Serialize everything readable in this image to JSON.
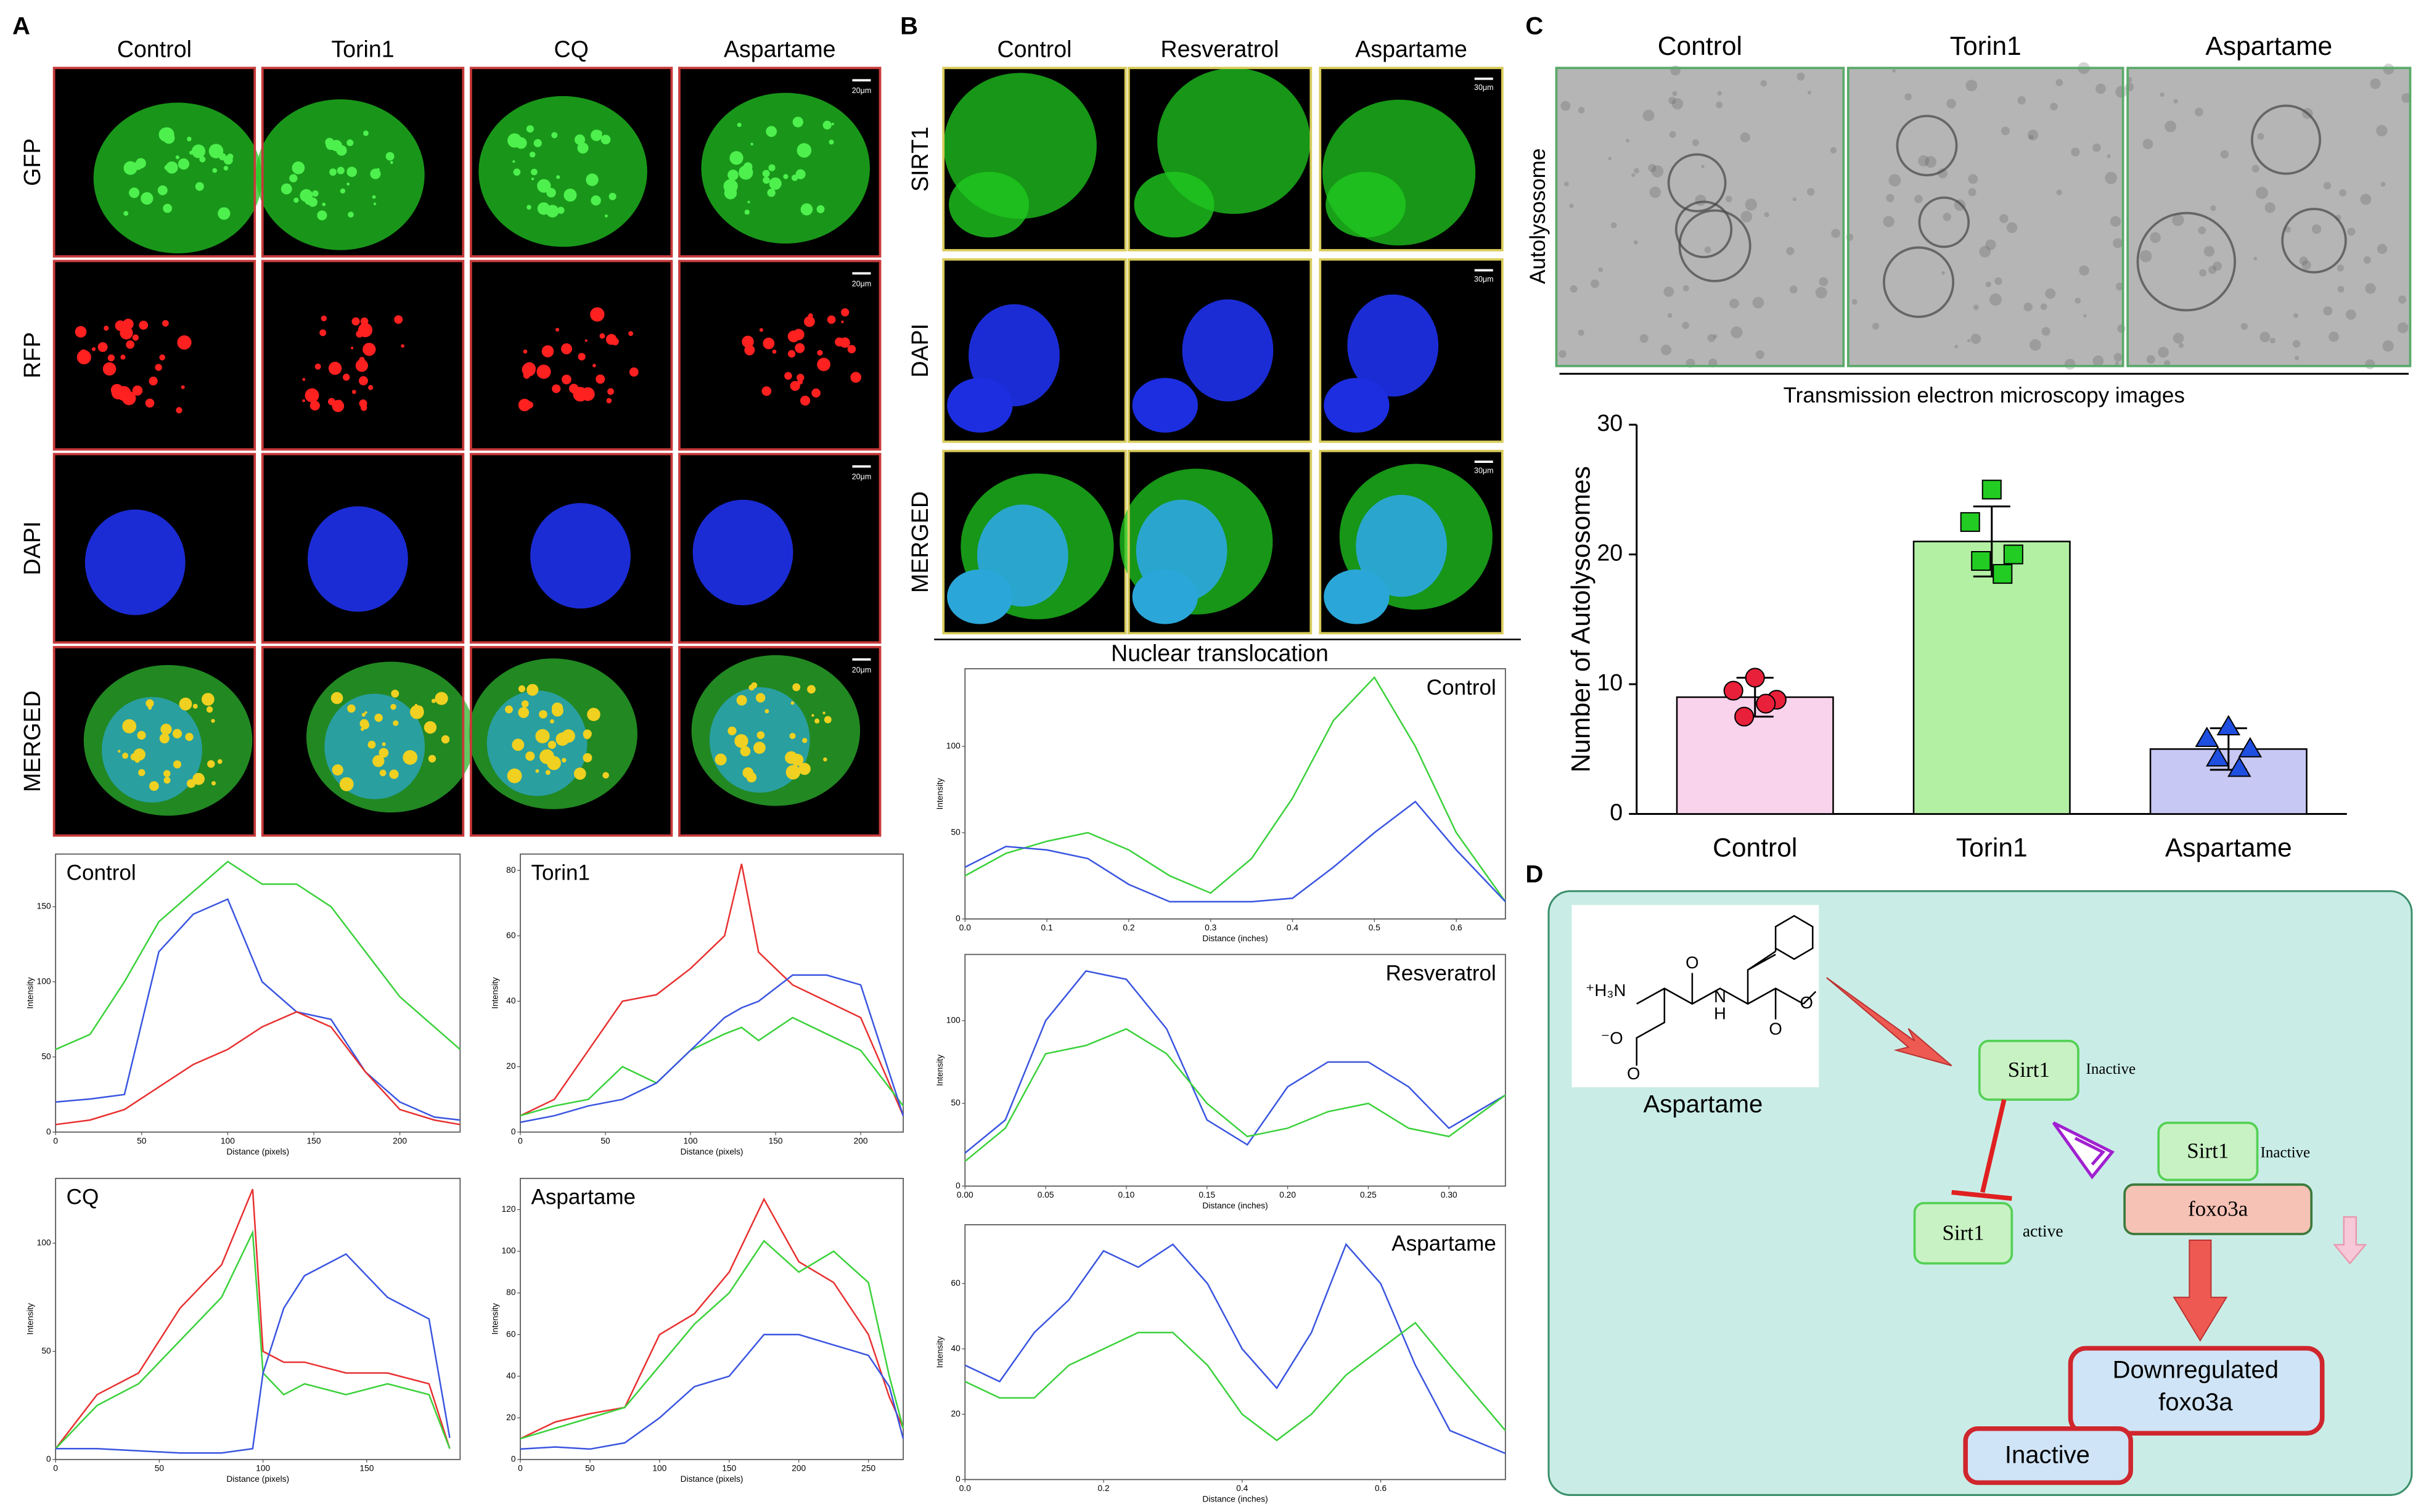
{
  "panel_a": {
    "label": "A",
    "columns": [
      "Control",
      "Torin1",
      "CQ",
      "Aspartame"
    ],
    "rows": [
      "GFP",
      "RFP",
      "DAPI",
      "MERGED"
    ],
    "scale_bar": "20μm"
  },
  "panel_b": {
    "label": "B",
    "columns": [
      "Control",
      "Resveratrol",
      "Aspartame"
    ],
    "rows": [
      "SIRT1",
      "DAPI",
      "MERGED"
    ],
    "scale_bar": "30μm",
    "subtitle": "Nuclear translocation"
  },
  "panel_c": {
    "label": "C",
    "columns": [
      "Control",
      "Torin1",
      "Aspartame"
    ],
    "row": "Autolysosome",
    "caption": "Transmission electron microscopy images"
  },
  "panel_d": {
    "label": "D",
    "molecule_name": "Aspartame",
    "atoms": [
      "⁺H₃N",
      "O",
      "N",
      "H",
      "O",
      "O",
      "⁻O",
      "O"
    ],
    "nodes": {
      "sirt1_top": "Sirt1",
      "sirt1_top_state": "Inactive",
      "sirt1_active": "Sirt1",
      "sirt1_active_state": "active",
      "sirt1_complex": "Sirt1",
      "sirt1_complex_state": "Inactive",
      "foxo3a": "foxo3a",
      "downregulated": [
        "Downregulated",
        "foxo3a"
      ],
      "inactive": "Inactive"
    }
  },
  "chart_data": [
    {
      "type": "line",
      "title": "Control",
      "xlabel": "Distance (pixels)",
      "ylabel": "Intensity",
      "x": [
        0,
        20,
        40,
        60,
        80,
        100,
        120,
        140,
        160,
        180,
        200,
        220,
        235
      ],
      "xlim": [
        0,
        235
      ],
      "ylim": [
        0,
        185
      ],
      "xticks": [
        0,
        50,
        100,
        150,
        200
      ],
      "yticks": [
        0,
        50,
        100,
        150
      ],
      "series": [
        {
          "color": "#3ad13a",
          "values": [
            55,
            65,
            100,
            140,
            160,
            180,
            165,
            165,
            150,
            120,
            90,
            70,
            55
          ]
        },
        {
          "color": "#3a55e0",
          "values": [
            20,
            22,
            25,
            120,
            145,
            155,
            100,
            80,
            75,
            40,
            20,
            10,
            8
          ]
        },
        {
          "color": "#e83030",
          "values": [
            5,
            8,
            15,
            30,
            45,
            55,
            70,
            80,
            70,
            40,
            15,
            8,
            5
          ]
        }
      ]
    },
    {
      "type": "line",
      "title": "Torin1",
      "xlabel": "Distance (pixels)",
      "ylabel": "Intensity",
      "x": [
        0,
        20,
        40,
        60,
        80,
        100,
        120,
        130,
        140,
        160,
        180,
        200,
        225
      ],
      "xlim": [
        0,
        225
      ],
      "ylim": [
        0,
        85
      ],
      "xticks": [
        0,
        50,
        100,
        150,
        200
      ],
      "yticks": [
        0,
        20,
        40,
        60,
        80
      ],
      "series": [
        {
          "color": "#e83030",
          "values": [
            5,
            10,
            25,
            40,
            42,
            50,
            60,
            82,
            55,
            45,
            40,
            35,
            5
          ]
        },
        {
          "color": "#3ad13a",
          "values": [
            5,
            8,
            10,
            20,
            15,
            25,
            30,
            32,
            28,
            35,
            30,
            25,
            8
          ]
        },
        {
          "color": "#3a55e0",
          "values": [
            3,
            5,
            8,
            10,
            15,
            25,
            35,
            38,
            40,
            48,
            48,
            45,
            5
          ]
        }
      ]
    },
    {
      "type": "line",
      "title": "CQ",
      "xlabel": "Distance (pixels)",
      "ylabel": "Intensity",
      "x": [
        0,
        20,
        40,
        60,
        80,
        95,
        100,
        110,
        120,
        140,
        160,
        180,
        190
      ],
      "xlim": [
        0,
        195
      ],
      "ylim": [
        0,
        130
      ],
      "xticks": [
        0,
        50,
        100,
        150
      ],
      "yticks": [
        0,
        50,
        100
      ],
      "series": [
        {
          "color": "#e83030",
          "values": [
            5,
            30,
            40,
            70,
            90,
            125,
            50,
            45,
            45,
            40,
            40,
            35,
            5
          ]
        },
        {
          "color": "#3ad13a",
          "values": [
            5,
            25,
            35,
            55,
            75,
            105,
            40,
            30,
            35,
            30,
            35,
            30,
            5
          ]
        },
        {
          "color": "#3a55e0",
          "values": [
            5,
            5,
            4,
            3,
            3,
            5,
            40,
            70,
            85,
            95,
            75,
            65,
            10
          ]
        }
      ]
    },
    {
      "type": "line",
      "title": "Aspartame",
      "xlabel": "Distance (pixels)",
      "ylabel": "Intensity",
      "x": [
        0,
        25,
        50,
        75,
        100,
        125,
        150,
        175,
        200,
        225,
        250,
        265,
        275
      ],
      "xlim": [
        0,
        275
      ],
      "ylim": [
        0,
        135
      ],
      "xticks": [
        0,
        50,
        100,
        150,
        200,
        250
      ],
      "yticks": [
        0,
        20,
        40,
        60,
        80,
        100,
        120
      ],
      "series": [
        {
          "color": "#e83030",
          "values": [
            10,
            18,
            22,
            25,
            60,
            70,
            90,
            125,
            95,
            85,
            60,
            30,
            15
          ]
        },
        {
          "color": "#3ad13a",
          "values": [
            10,
            15,
            20,
            25,
            45,
            65,
            80,
            105,
            90,
            100,
            85,
            40,
            15
          ]
        },
        {
          "color": "#3a55e0",
          "values": [
            5,
            6,
            5,
            8,
            20,
            35,
            40,
            60,
            60,
            55,
            50,
            35,
            10
          ]
        }
      ]
    },
    {
      "type": "line",
      "title": "Control",
      "xlabel": "Distance (inches)",
      "ylabel": "Intensity",
      "x": [
        0,
        0.05,
        0.1,
        0.15,
        0.2,
        0.25,
        0.3,
        0.35,
        0.4,
        0.45,
        0.5,
        0.55,
        0.6,
        0.66
      ],
      "xlim": [
        0,
        0.66
      ],
      "ylim": [
        0,
        145
      ],
      "xticks": [
        {
          "value": 0,
          "label": "0.0"
        },
        0.1,
        0.2,
        0.3,
        0.4,
        0.5,
        0.6
      ],
      "yticks": [
        0,
        50,
        100
      ],
      "series": [
        {
          "color": "#3ad13a",
          "values": [
            25,
            38,
            45,
            50,
            40,
            25,
            15,
            35,
            70,
            115,
            140,
            100,
            50,
            10
          ]
        },
        {
          "color": "#3a55e0",
          "values": [
            30,
            42,
            40,
            35,
            20,
            10,
            10,
            10,
            12,
            30,
            50,
            68,
            40,
            10
          ]
        }
      ]
    },
    {
      "type": "line",
      "title": "Resveratrol",
      "xlabel": "Distance (inches)",
      "ylabel": "Intensity",
      "x": [
        0,
        0.025,
        0.05,
        0.075,
        0.1,
        0.125,
        0.15,
        0.175,
        0.2,
        0.225,
        0.25,
        0.275,
        0.3,
        0.335
      ],
      "xlim": [
        0,
        0.335
      ],
      "ylim": [
        0,
        140
      ],
      "xticks": [
        {
          "value": 0,
          "label": "0.00"
        },
        0.05,
        {
          "value": 0.1,
          "label": "0.10"
        },
        0.15,
        {
          "value": 0.2,
          "label": "0.20"
        },
        0.25,
        {
          "value": 0.3,
          "label": "0.30"
        }
      ],
      "yticks": [
        0,
        50,
        100
      ],
      "series": [
        {
          "color": "#3a55e0",
          "values": [
            20,
            40,
            100,
            130,
            125,
            95,
            40,
            25,
            60,
            75,
            75,
            60,
            35,
            55
          ]
        },
        {
          "color": "#3ad13a",
          "values": [
            15,
            35,
            80,
            85,
            95,
            80,
            50,
            30,
            35,
            45,
            50,
            35,
            30,
            55
          ]
        }
      ]
    },
    {
      "type": "line",
      "title": "Aspartame",
      "xlabel": "Distance (inches)",
      "ylabel": "Intensity",
      "x": [
        0,
        0.05,
        0.1,
        0.15,
        0.2,
        0.25,
        0.3,
        0.35,
        0.4,
        0.45,
        0.5,
        0.55,
        0.6,
        0.65,
        0.7,
        0.78
      ],
      "xlim": [
        0,
        0.78
      ],
      "ylim": [
        0,
        78
      ],
      "xticks": [
        {
          "value": 0,
          "label": "0.0"
        },
        0.2,
        0.4,
        0.6
      ],
      "yticks": [
        0,
        20,
        40,
        60
      ],
      "series": [
        {
          "color": "#3a55e0",
          "values": [
            35,
            30,
            45,
            55,
            70,
            65,
            72,
            60,
            40,
            28,
            45,
            72,
            60,
            35,
            15,
            8
          ]
        },
        {
          "color": "#3ad13a",
          "values": [
            30,
            25,
            25,
            35,
            40,
            45,
            45,
            35,
            20,
            12,
            20,
            32,
            40,
            48,
            35,
            15
          ]
        }
      ]
    },
    {
      "type": "bar",
      "ylabel": "Number of Autolysosomes",
      "categories": [
        "Control",
        "Torin1",
        "Aspartame"
      ],
      "values": [
        9,
        21,
        5
      ],
      "errors": [
        1.5,
        2.7,
        1.6
      ],
      "colors": [
        "#f9d3ec",
        "#b4f0a4",
        "#c8c8f4"
      ],
      "marker_colors": [
        "#e8203a",
        "#22cc22",
        "#1f4fe0"
      ],
      "markers": [
        "circle",
        "square",
        "triangle"
      ],
      "points": [
        [
          10.5,
          9.5,
          8.8,
          7.5,
          8.5
        ],
        [
          25,
          22.5,
          20,
          19.5,
          18.5
        ],
        [
          6.7,
          5.8,
          5.0,
          4.3,
          3.5
        ]
      ],
      "ylim": [
        0,
        30
      ],
      "yticks": [
        0,
        10,
        20,
        30
      ]
    }
  ]
}
